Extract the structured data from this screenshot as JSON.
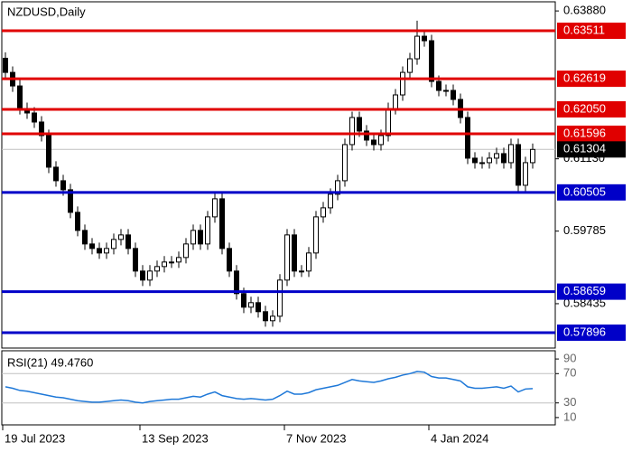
{
  "chart_data": [
    {
      "type": "candlestick",
      "title": "NZDUSD,Daily",
      "categories": [
        "19 Jul 2023",
        null,
        null,
        null,
        null,
        null,
        null,
        null,
        null,
        null,
        null,
        null,
        null,
        null,
        null,
        null,
        null,
        null,
        null,
        "13 Sep 2023",
        null,
        null,
        null,
        null,
        null,
        null,
        null,
        null,
        null,
        null,
        null,
        null,
        null,
        null,
        null,
        null,
        null,
        null,
        null,
        "7 Nov 2023",
        null,
        null,
        null,
        null,
        null,
        null,
        null,
        null,
        null,
        null,
        null,
        null,
        null,
        null,
        null,
        null,
        null,
        null,
        null,
        "4 Jan 2024",
        null,
        null,
        null,
        null,
        null,
        null,
        null,
        null,
        null,
        null,
        null,
        null,
        null,
        null
      ],
      "open": [
        0.63,
        0.62737,
        0.62485,
        0.62065,
        0.61982,
        0.61814,
        0.61562,
        0.60974,
        0.60722,
        0.60554,
        0.60134,
        0.59798,
        0.59546,
        0.59462,
        0.59378,
        0.59462,
        0.5963,
        0.59714,
        0.59462,
        0.59042,
        0.58874,
        0.59042,
        0.59126,
        0.5921,
        0.5921,
        0.59294,
        0.59546,
        0.59798,
        0.59546,
        0.6005,
        0.60386,
        0.59462,
        0.59042,
        0.58622,
        0.5837,
        0.58454,
        0.58286,
        0.58118,
        0.58202,
        0.58874,
        0.59714,
        0.59042,
        0.59042,
        0.59378,
        0.6005,
        0.60218,
        0.6047,
        0.60722,
        0.61394,
        0.61898,
        0.61646,
        0.61478,
        0.61394,
        0.61562,
        0.62065,
        0.62318,
        0.62737,
        0.6299,
        0.6341,
        0.63326,
        0.6257,
        0.62402,
        0.62402,
        0.62234,
        0.61898,
        0.61142,
        0.61058,
        0.61058,
        0.61142,
        0.61226,
        0.61058,
        0.61394,
        0.60638,
        0.61058
      ],
      "high": [
        0.6311,
        0.62847,
        0.62595,
        0.62175,
        0.62092,
        0.61924,
        0.61672,
        0.61084,
        0.60832,
        0.60664,
        0.60244,
        0.59908,
        0.59656,
        0.59572,
        0.59572,
        0.5974,
        0.59824,
        0.59824,
        0.59572,
        0.59152,
        0.59152,
        0.59236,
        0.5932,
        0.5932,
        0.59404,
        0.59656,
        0.59908,
        0.59908,
        0.6016,
        0.60496,
        0.60496,
        0.59572,
        0.59152,
        0.58732,
        0.58564,
        0.58564,
        0.58396,
        0.58312,
        0.58984,
        0.59824,
        0.59824,
        0.59152,
        0.59488,
        0.6016,
        0.60328,
        0.6058,
        0.60832,
        0.61504,
        0.62008,
        0.62008,
        0.61756,
        0.61588,
        0.61672,
        0.62175,
        0.62428,
        0.62847,
        0.631,
        0.637,
        0.6352,
        0.63436,
        0.6268,
        0.62512,
        0.62512,
        0.62344,
        0.62008,
        0.61252,
        0.61168,
        0.61252,
        0.61336,
        0.61336,
        0.61504,
        0.61504,
        0.61168,
        0.61414
      ],
      "low": [
        0.62627,
        0.62375,
        0.61955,
        0.61872,
        0.61704,
        0.61452,
        0.60864,
        0.60612,
        0.60444,
        0.60024,
        0.59688,
        0.59436,
        0.59352,
        0.59268,
        0.59268,
        0.59352,
        0.5952,
        0.59352,
        0.58932,
        0.58764,
        0.58764,
        0.58932,
        0.59016,
        0.591,
        0.591,
        0.59184,
        0.59436,
        0.59436,
        0.59436,
        0.5994,
        0.59352,
        0.58932,
        0.58512,
        0.5826,
        0.5826,
        0.58176,
        0.58008,
        0.58008,
        0.58092,
        0.58764,
        0.58932,
        0.58932,
        0.58932,
        0.59268,
        0.5994,
        0.60108,
        0.6036,
        0.60612,
        0.61284,
        0.61536,
        0.61368,
        0.61284,
        0.61284,
        0.61452,
        0.61955,
        0.62208,
        0.62627,
        0.6288,
        0.63216,
        0.6246,
        0.62292,
        0.62292,
        0.62124,
        0.61788,
        0.61032,
        0.60948,
        0.60948,
        0.60948,
        0.61032,
        0.60948,
        0.60948,
        0.60528,
        0.60528,
        0.60948
      ],
      "close": [
        0.62737,
        0.62485,
        0.62065,
        0.61982,
        0.61814,
        0.61562,
        0.60974,
        0.60722,
        0.60554,
        0.60134,
        0.59798,
        0.59546,
        0.59462,
        0.59378,
        0.59462,
        0.5963,
        0.59714,
        0.59462,
        0.59042,
        0.58874,
        0.59042,
        0.59126,
        0.5921,
        0.5921,
        0.59294,
        0.59546,
        0.59798,
        0.59546,
        0.6005,
        0.60386,
        0.59462,
        0.59042,
        0.58622,
        0.5837,
        0.58454,
        0.58286,
        0.58118,
        0.58202,
        0.58874,
        0.59714,
        0.59042,
        0.59042,
        0.59378,
        0.6005,
        0.60218,
        0.6047,
        0.60722,
        0.61394,
        0.61898,
        0.61646,
        0.61478,
        0.61394,
        0.61562,
        0.62065,
        0.62318,
        0.62737,
        0.6299,
        0.6341,
        0.63326,
        0.6257,
        0.62402,
        0.62402,
        0.62234,
        0.61898,
        0.61142,
        0.61058,
        0.61058,
        0.61142,
        0.61226,
        0.61058,
        0.61394,
        0.60638,
        0.61058,
        0.61304
      ],
      "ylim": [
        0.5761,
        0.6405
      ],
      "yticks": [
        {
          "value": 0.6388,
          "label": "0.63880"
        },
        {
          "value": 0.6113,
          "label": "0.61130"
        },
        {
          "value": 0.59785,
          "label": "0.59785"
        },
        {
          "value": 0.58435,
          "label": "0.58435"
        }
      ],
      "levels": [
        {
          "value": 0.63511,
          "label": "0.63511",
          "color": "#e00000"
        },
        {
          "value": 0.62619,
          "label": "0.62619",
          "color": "#e00000"
        },
        {
          "value": 0.6205,
          "label": "0.62050",
          "color": "#e00000"
        },
        {
          "value": 0.61596,
          "label": "0.61596",
          "color": "#e00000"
        },
        {
          "value": 0.60505,
          "label": "0.60505",
          "color": "#0000c8"
        },
        {
          "value": 0.58659,
          "label": "0.58659",
          "color": "#0000c8"
        },
        {
          "value": 0.57896,
          "label": "0.57896",
          "color": "#0000c8"
        }
      ],
      "last_price": {
        "value": 0.61304,
        "label": "0.61304"
      }
    },
    {
      "type": "line",
      "title": "RSI(21) 49.4760",
      "color": "#1e78d8",
      "values": [
        52,
        50,
        47,
        46,
        44,
        42,
        40,
        38,
        37,
        35,
        33,
        32,
        31,
        31,
        32,
        33,
        34,
        33,
        31,
        30,
        32,
        33,
        34,
        35,
        35,
        37,
        39,
        38,
        42,
        45,
        40,
        38,
        36,
        35,
        36,
        35,
        34,
        35,
        40,
        46,
        42,
        42,
        44,
        48,
        50,
        52,
        54,
        58,
        62,
        60,
        59,
        58,
        60,
        63,
        65,
        68,
        70,
        73,
        72,
        66,
        64,
        64,
        62,
        60,
        52,
        50,
        50,
        51,
        52,
        50,
        53,
        45,
        49,
        49.476
      ],
      "ylim": [
        0,
        100
      ],
      "yticks": [
        90,
        70,
        30,
        10
      ],
      "levels": [
        70,
        30
      ]
    }
  ]
}
